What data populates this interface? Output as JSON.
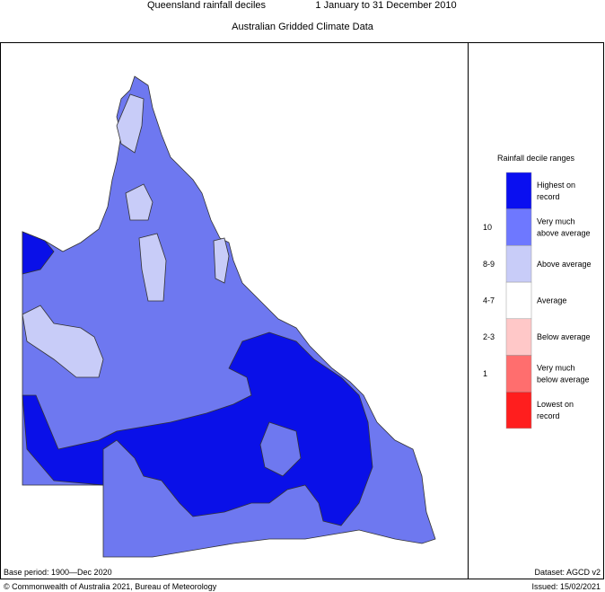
{
  "header": {
    "title": "Queensland rainfall deciles",
    "period": "1 January to 31 December 2010",
    "subtitle": "Australian Gridded Climate Data"
  },
  "legend": {
    "title": "Rainfall decile ranges",
    "items": [
      {
        "range": null,
        "label": [
          "Highest on",
          "record"
        ],
        "color": "#0a0ff0"
      },
      {
        "range": "10",
        "label": [
          "Very much",
          "above average"
        ],
        "color": "#6e78ff"
      },
      {
        "range": "8-9",
        "label": [
          "Above average"
        ],
        "color": "#c8ccf8"
      },
      {
        "range": "4-7",
        "label": [
          "Average"
        ],
        "color": "#ffffff"
      },
      {
        "range": "2-3",
        "label": [
          "Below average"
        ],
        "color": "#ffc8c8"
      },
      {
        "range": "1",
        "label": [
          "Very much",
          "below average"
        ],
        "color": "#ff6e6e"
      },
      {
        "range": null,
        "label": [
          "Lowest on",
          "record"
        ],
        "color": "#ff1e1e"
      }
    ]
  },
  "footer": {
    "base_period": "Base period: 1900—Dec 2020",
    "dataset": "Dataset: AGCD v2",
    "copyright": "© Commonwealth of Australia 2021, Bureau of Meteorology",
    "issued": "Issued: 15/02/2021"
  }
}
